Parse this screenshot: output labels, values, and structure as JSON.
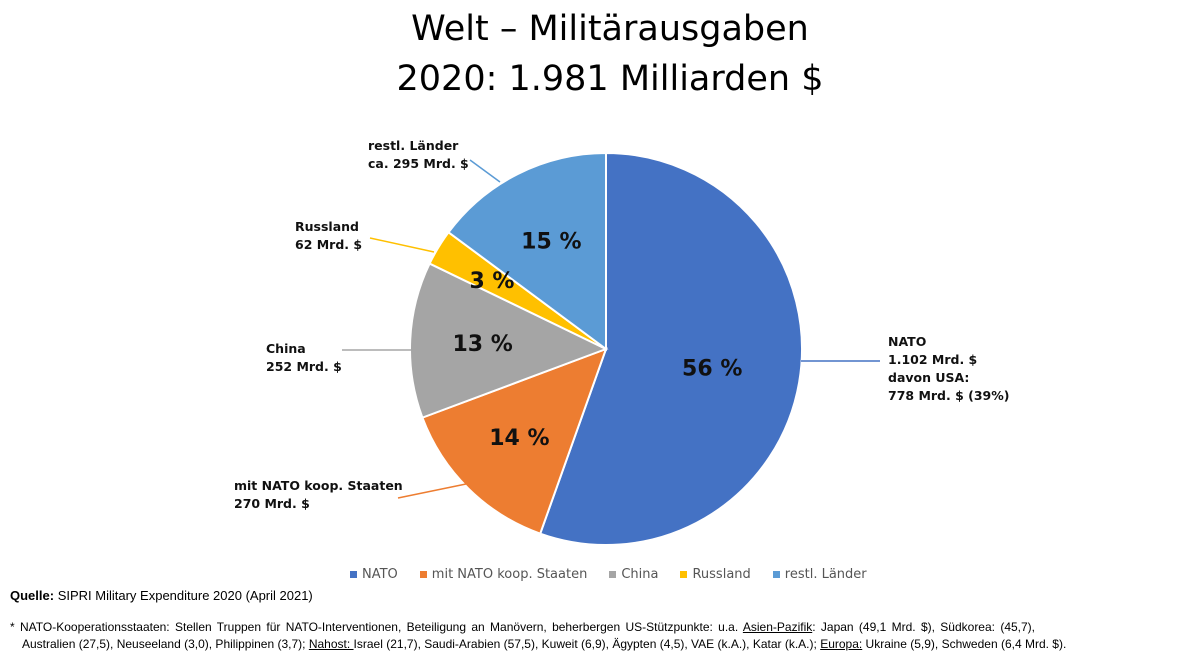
{
  "chart_data": {
    "type": "pie",
    "title": [
      "Welt – Militärausgaben",
      "2020: 1.981 Milliarden $"
    ],
    "slices": [
      {
        "name": "NATO",
        "value": 56,
        "value_label": "56 %",
        "color": "#4472C4",
        "annotation": [
          "NATO",
          "1.102 Mrd. $",
          "davon USA:",
          "778 Mrd. $ (39%)"
        ]
      },
      {
        "name": "mit NATO koop. Staaten",
        "value": 14,
        "value_label": "14 %",
        "color": "#ED7D31",
        "annotation": [
          "mit NATO koop. Staaten",
          "270 Mrd. $"
        ]
      },
      {
        "name": "China",
        "value": 13,
        "value_label": "13 %",
        "color": "#A5A5A5",
        "annotation": [
          "China",
          "252 Mrd. $"
        ]
      },
      {
        "name": "Russland",
        "value": 3,
        "value_label": "3 %",
        "color": "#FFC000",
        "annotation": [
          "Russland",
          "62 Mrd. $"
        ]
      },
      {
        "name": "restl. Länder",
        "value": 15,
        "value_label": "15 %",
        "color": "#5B9BD5",
        "annotation": [
          "restl. Länder",
          "ca. 295 Mrd. $"
        ]
      }
    ],
    "legend_position": "bottom"
  },
  "source": {
    "label": "Quelle:",
    "text": "SIPRI Military Expenditure 2020 (April 2021)"
  },
  "footnote": {
    "intro": "* NATO-Kooperationsstaaten:  Stellen Truppen für NATO-Interventionen,  Beteiligung an Manövern,  beherbergen  US-Stützpunkte: u.a.",
    "region1": "Asien-Pazifik",
    "text1a": ": Japan (49,1 Mrd. $), Südkorea:  (45,7),",
    "text1b": "Australien (27,5), Neuseeland (3,0), Philippinen (3,7);",
    "region2": "Nahost: ",
    "text2": " Israel (21,7), Saudi-Arabien (57,5), Kuweit (6,9), Ägypten (4,5), VAE (k.A.), Katar (k.A.);",
    "region3": "Europa:",
    "text3": " Ukraine (5,9), Schweden (6,4 Mrd. $)."
  }
}
